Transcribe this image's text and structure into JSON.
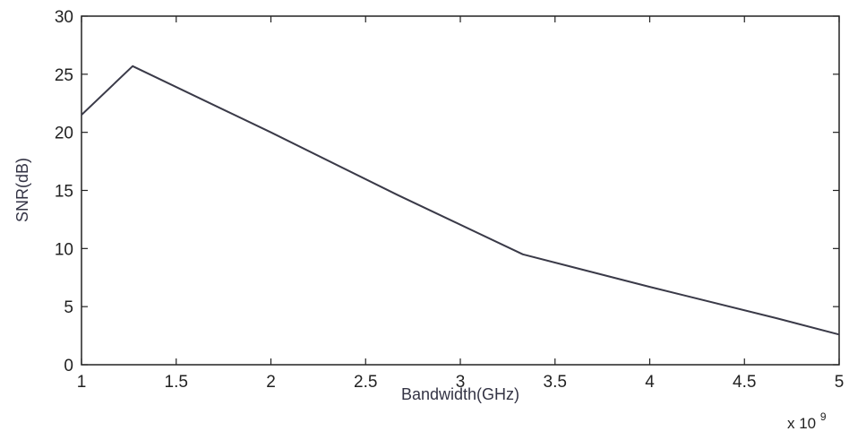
{
  "chart_data": {
    "type": "line",
    "title": "",
    "xlabel": "Bandwidth(GHz)",
    "ylabel": "SNR(dB)",
    "x_multiplier": {
      "base": "x 10",
      "exponent": "9"
    },
    "xlim": [
      1,
      5
    ],
    "ylim": [
      0,
      30
    ],
    "grid": false,
    "x_ticks": [
      1,
      1.5,
      2,
      2.5,
      3,
      3.5,
      4,
      4.5,
      5
    ],
    "x_tick_labels": [
      "1",
      "1.5",
      "2",
      "2.5",
      "3",
      "3.5",
      "4",
      "4.5",
      "5"
    ],
    "y_ticks": [
      0,
      5,
      10,
      15,
      20,
      25,
      30
    ],
    "y_tick_labels": [
      "0",
      "5",
      "10",
      "15",
      "20",
      "25",
      "30"
    ],
    "series": [
      {
        "x": [
          1.0,
          1.27,
          2.0,
          2.67,
          3.33,
          4.0,
          4.67,
          5.0
        ],
        "y": [
          21.5,
          25.7,
          20.0,
          14.6,
          9.5,
          6.7,
          4.0,
          2.6
        ],
        "color": "#3a3a48"
      }
    ]
  }
}
